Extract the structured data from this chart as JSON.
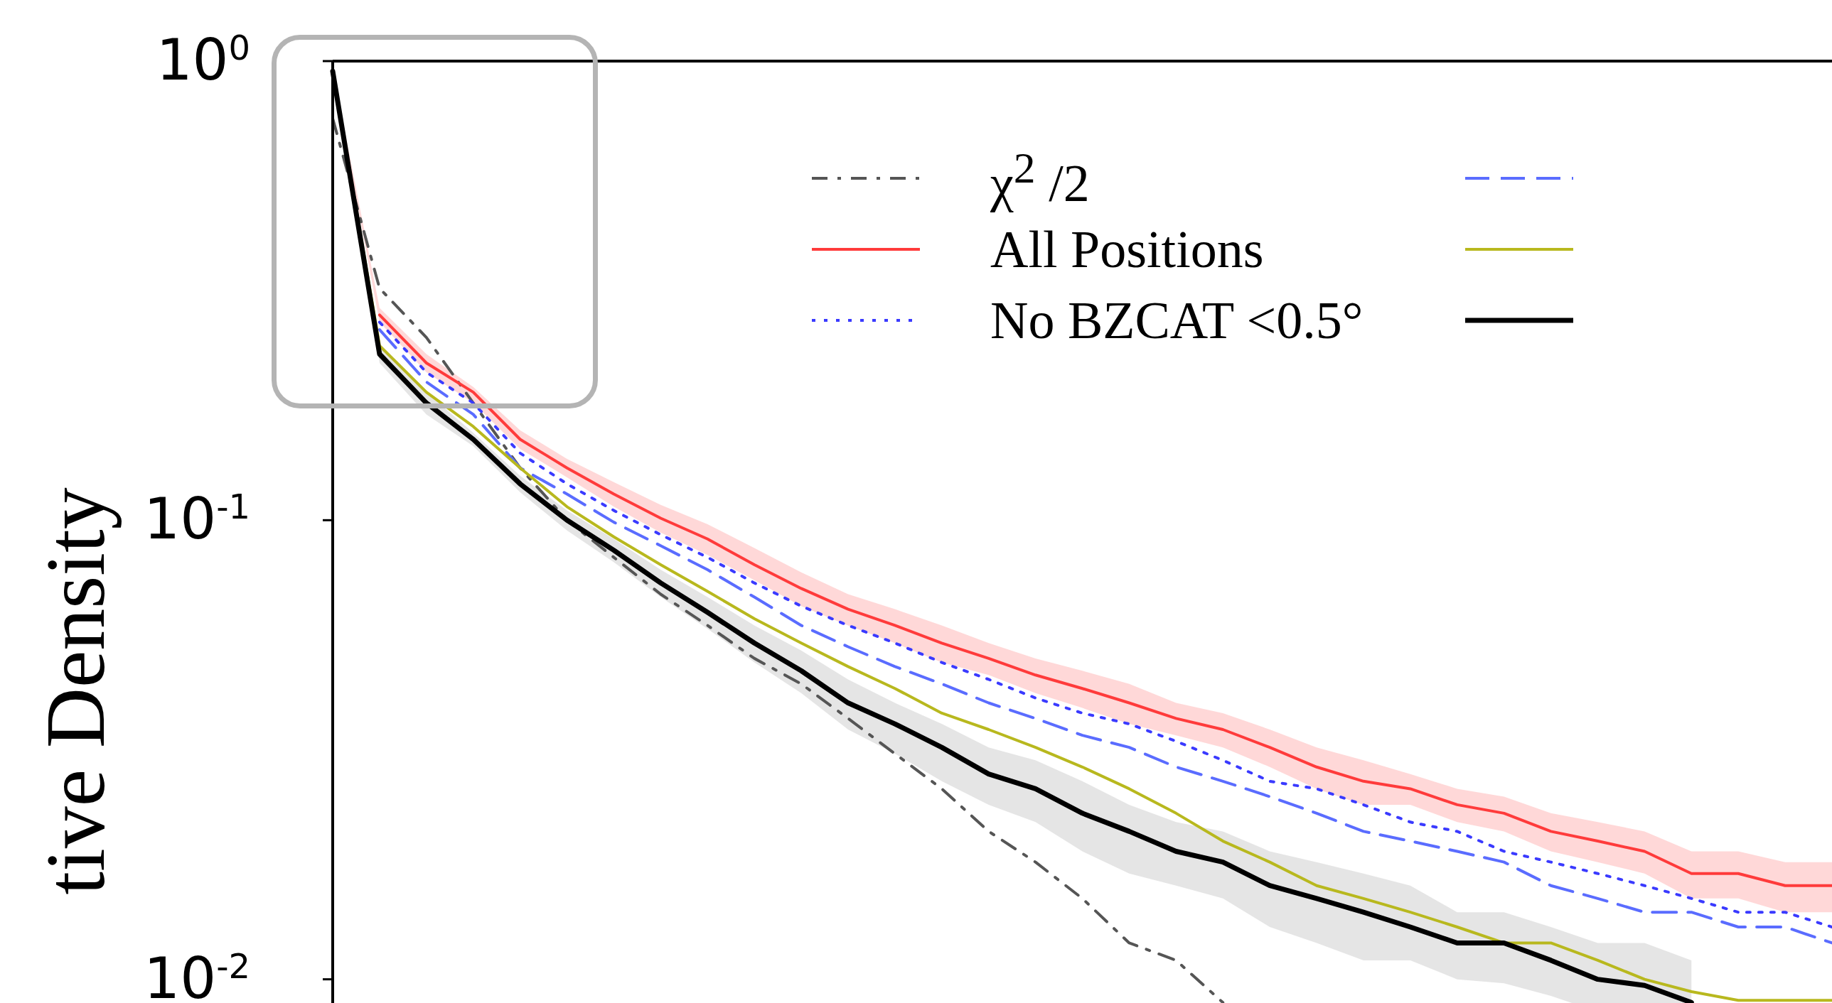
{
  "chart_data": {
    "type": "line",
    "ylabel": "tive Density",
    "log": "y",
    "ylim": [
      0.0077,
      1
    ],
    "yticks": [
      {
        "value": 1,
        "label": "10$^{0}$"
      },
      {
        "value": 0.1,
        "label": "10$^{-1}$"
      },
      {
        "value": 0.01,
        "label": "10$^{-2}$"
      }
    ],
    "tick_labels": "y",
    "legend": "top",
    "marker": "none",
    "categories": [
      null,
      null,
      null,
      null,
      null,
      null,
      null,
      null,
      null,
      null,
      null,
      null,
      null,
      null,
      null,
      null,
      null,
      null,
      null,
      null,
      null,
      null,
      null,
      null,
      null,
      null,
      null,
      null,
      null,
      null,
      null,
      null,
      null
    ],
    "series": [
      {
        "name": "χ$^{2}$ /2",
        "color": "#555555",
        "line_style": "dashdot",
        "values": [
          0.75,
          0.32,
          0.25,
          0.18,
          0.13,
          0.1,
          0.083,
          0.069,
          0.059,
          0.05,
          0.044,
          0.037,
          0.031,
          0.026,
          0.021,
          0.018,
          0.015,
          0.012,
          0.011,
          0.0089,
          null,
          null,
          null,
          null,
          null,
          null,
          null,
          null,
          null,
          null,
          null,
          null,
          null
        ]
      },
      {
        "name": "All Positions",
        "color": "#ff3b3b",
        "line_style": "solid",
        "values": [
          null,
          0.28,
          0.22,
          0.19,
          0.15,
          0.13,
          0.114,
          0.101,
          0.091,
          0.08,
          0.071,
          0.064,
          0.059,
          0.054,
          0.05,
          0.046,
          0.043,
          0.04,
          0.037,
          0.035,
          0.032,
          0.029,
          0.027,
          0.026,
          0.024,
          0.023,
          0.021,
          0.02,
          0.019,
          0.017,
          0.017,
          0.016,
          0.016
        ],
        "upper": [
          0.96,
          0.29,
          0.23,
          0.195,
          0.157,
          0.136,
          0.121,
          0.108,
          0.098,
          0.087,
          0.077,
          0.069,
          0.064,
          0.059,
          0.054,
          0.05,
          0.047,
          0.044,
          0.04,
          0.038,
          0.035,
          0.032,
          0.03,
          0.028,
          0.026,
          0.025,
          0.023,
          0.022,
          0.021,
          0.019,
          0.019,
          0.018,
          0.018
        ],
        "lower": [
          0.94,
          0.27,
          0.21,
          0.18,
          0.143,
          0.124,
          0.107,
          0.094,
          0.084,
          0.074,
          0.065,
          0.059,
          0.054,
          0.049,
          0.046,
          0.042,
          0.039,
          0.036,
          0.034,
          0.032,
          0.029,
          0.026,
          0.024,
          0.024,
          0.022,
          0.021,
          0.019,
          0.018,
          0.017,
          0.015,
          0.015,
          0.014,
          0.014
        ]
      },
      {
        "name": "No BZCAT <0.5°",
        "color": "#3a3aff",
        "line_style": "dotted",
        "values": [
          null,
          0.27,
          0.21,
          0.18,
          0.14,
          0.12,
          0.105,
          0.093,
          0.083,
          0.073,
          0.065,
          0.059,
          0.054,
          0.049,
          0.045,
          0.041,
          0.038,
          0.036,
          0.033,
          0.03,
          0.027,
          0.026,
          0.024,
          0.022,
          0.021,
          0.019,
          0.018,
          0.017,
          0.016,
          0.015,
          0.014,
          0.014,
          0.013
        ]
      },
      {
        "color": "#5a6cff",
        "line_style": "dashed",
        "values": [
          null,
          0.26,
          0.2,
          0.17,
          0.13,
          0.114,
          0.099,
          0.088,
          0.078,
          0.068,
          0.059,
          0.053,
          0.048,
          0.044,
          0.04,
          0.037,
          0.034,
          0.032,
          0.029,
          0.027,
          0.025,
          0.023,
          0.021,
          0.02,
          0.019,
          0.018,
          0.016,
          0.015,
          0.014,
          0.014,
          0.013,
          0.013,
          0.012
        ]
      },
      {
        "color": "#b8b81e",
        "line_style": "solid",
        "values": [
          0.95,
          0.24,
          0.19,
          0.16,
          0.13,
          0.107,
          0.092,
          0.08,
          0.07,
          0.061,
          0.054,
          0.048,
          0.043,
          0.038,
          0.035,
          0.032,
          0.029,
          0.026,
          0.023,
          0.02,
          0.018,
          0.016,
          0.015,
          0.014,
          0.013,
          0.012,
          0.012,
          0.011,
          0.01,
          0.0094,
          0.009,
          0.009,
          0.009
        ]
      },
      {
        "color": "#000000",
        "line_style": "solid",
        "values": [
          0.95,
          0.23,
          0.18,
          0.15,
          0.12,
          0.1,
          0.086,
          0.073,
          0.063,
          0.054,
          0.047,
          0.04,
          0.036,
          0.032,
          0.028,
          0.026,
          0.023,
          0.021,
          0.019,
          0.018,
          0.016,
          0.015,
          0.014,
          0.013,
          0.012,
          0.012,
          0.011,
          0.01,
          0.0097,
          0.0089,
          null,
          null,
          null
        ],
        "upper": [
          0.96,
          0.24,
          0.19,
          0.155,
          0.125,
          0.105,
          0.091,
          0.078,
          0.068,
          0.059,
          0.052,
          0.045,
          0.04,
          0.036,
          0.032,
          0.03,
          0.027,
          0.024,
          0.022,
          0.021,
          0.019,
          0.018,
          0.017,
          0.016,
          0.014,
          0.014,
          0.013,
          0.012,
          0.012,
          0.011,
          null,
          null,
          null
        ],
        "lower": [
          0.94,
          0.22,
          0.17,
          0.145,
          0.115,
          0.095,
          0.081,
          0.068,
          0.058,
          0.049,
          0.042,
          0.035,
          0.031,
          0.027,
          0.024,
          0.022,
          0.019,
          0.017,
          0.016,
          0.015,
          0.013,
          0.012,
          0.011,
          0.011,
          0.01,
          0.0098,
          0.0092,
          0.0085,
          0.0082,
          0.0078,
          null,
          null,
          null
        ]
      }
    ]
  }
}
